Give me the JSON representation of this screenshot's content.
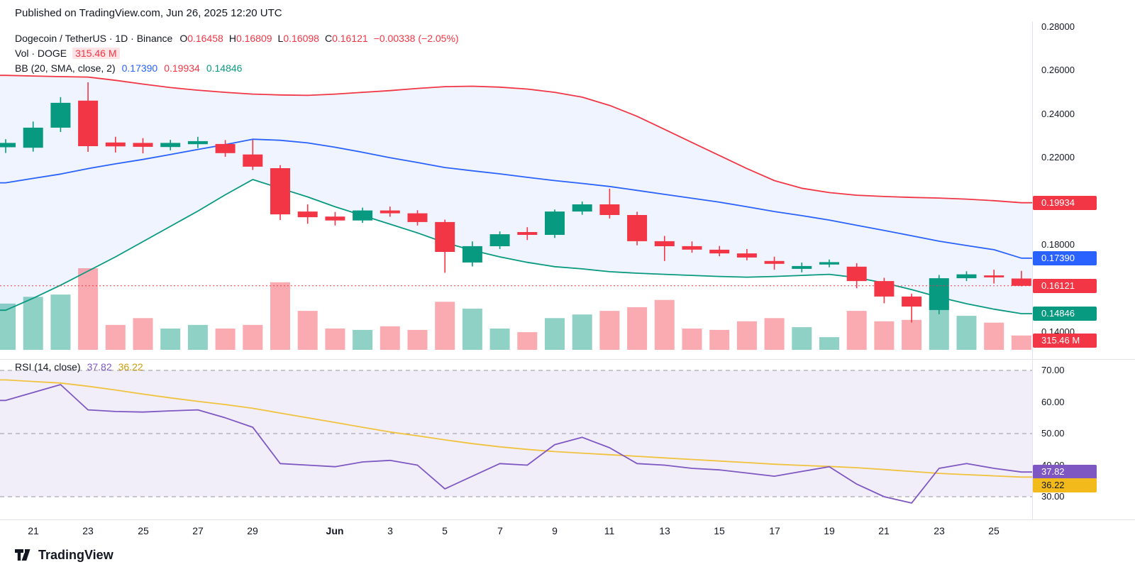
{
  "header": {
    "published": "Published on TradingView.com, Jun 26, 2025 12:20 UTC"
  },
  "legend": {
    "title": "Dogecoin / TetherUS · 1D · Binance",
    "ohlc": [
      {
        "k": "O",
        "v": "0.16458"
      },
      {
        "k": "H",
        "v": "0.16809"
      },
      {
        "k": "L",
        "v": "0.16098"
      },
      {
        "k": "C",
        "v": "0.16121"
      }
    ],
    "change": "−0.00338 (−2.05%)",
    "vol_label": "Vol · DOGE",
    "vol_value": "315.46 M",
    "bb_label": "BB (20, SMA, close, 2)",
    "bb_basis": "0.17390",
    "bb_upper": "0.19934",
    "bb_lower": "0.14846"
  },
  "rsi_legend": {
    "label": "RSI (14, close)",
    "rsi_value": "37.82",
    "ma_value": "36.22"
  },
  "price_scale": {
    "ticks": [
      {
        "label": "0.28000",
        "price": 0.28
      },
      {
        "label": "0.26000",
        "price": 0.26
      },
      {
        "label": "0.24000",
        "price": 0.24
      },
      {
        "label": "0.22000",
        "price": 0.22
      },
      {
        "label": "0.18000",
        "price": 0.18
      },
      {
        "label": "0.14000",
        "price": 0.14
      }
    ],
    "badges": [
      {
        "label": "0.19934",
        "price": 0.19934,
        "bg": "#f23645",
        "fg": "#ffffff"
      },
      {
        "label": "0.17390",
        "price": 0.1739,
        "bg": "#2962ff",
        "fg": "#ffffff"
      },
      {
        "label": "0.16121",
        "price": 0.16121,
        "bg": "#f23645",
        "fg": "#ffffff"
      },
      {
        "label": "0.14846",
        "price": 0.14846,
        "bg": "#089981",
        "fg": "#ffffff"
      }
    ],
    "vol_badge": {
      "label": "315.46 M",
      "bg": "#f23645",
      "fg": "#ffffff"
    }
  },
  "rsi_scale": {
    "ticks": [
      {
        "label": "70.00",
        "value": 70
      },
      {
        "label": "60.00",
        "value": 60
      },
      {
        "label": "50.00",
        "value": 50
      },
      {
        "label": "40.00",
        "value": 40
      },
      {
        "label": "30.00",
        "value": 30
      }
    ],
    "badges": [
      {
        "label": "37.82",
        "value": 37.82,
        "bg": "#7e57c2",
        "fg": "#ffffff"
      },
      {
        "label": "36.22",
        "value": 36.22,
        "bg": "#f3ba1c",
        "fg": "#131722"
      }
    ]
  },
  "time_axis": {
    "ticks": [
      {
        "index": 1,
        "label": "21",
        "bold": false
      },
      {
        "index": 3,
        "label": "23",
        "bold": false
      },
      {
        "index": 5,
        "label": "25",
        "bold": false
      },
      {
        "index": 7,
        "label": "27",
        "bold": false
      },
      {
        "index": 9,
        "label": "29",
        "bold": false
      },
      {
        "index": 12,
        "label": "Jun",
        "bold": true
      },
      {
        "index": 14,
        "label": "3",
        "bold": false
      },
      {
        "index": 16,
        "label": "5",
        "bold": false
      },
      {
        "index": 18,
        "label": "7",
        "bold": false
      },
      {
        "index": 20,
        "label": "9",
        "bold": false
      },
      {
        "index": 22,
        "label": "11",
        "bold": false
      },
      {
        "index": 24,
        "label": "13",
        "bold": false
      },
      {
        "index": 26,
        "label": "15",
        "bold": false
      },
      {
        "index": 28,
        "label": "17",
        "bold": false
      },
      {
        "index": 30,
        "label": "19",
        "bold": false
      },
      {
        "index": 32,
        "label": "21",
        "bold": false
      },
      {
        "index": 34,
        "label": "23",
        "bold": false
      },
      {
        "index": 36,
        "label": "25",
        "bold": false
      }
    ]
  },
  "footer": {
    "brand": "TradingView"
  },
  "colors": {
    "up": "#089981",
    "down": "#f23645",
    "vol_up": "rgba(8,153,129,0.45)",
    "vol_down": "rgba(242,54,69,0.42)",
    "bb_upper": "#f23645",
    "bb_basis": "#2962ff",
    "bb_lower": "#089981",
    "bb_fill": "rgba(41,98,255,0.07)",
    "rsi_line": "#7e57c2",
    "rsi_ma": "#f0c23e",
    "rsi_fill": "rgba(126,87,194,0.10)",
    "level": "#9598a1"
  },
  "chart_data": {
    "type": "candlestick",
    "title": "Dogecoin / TetherUS · 1D · Binance",
    "symbol": "Dogecoin / TetherUS",
    "interval": "1D",
    "exchange": "Binance",
    "last": {
      "o": 0.16458,
      "h": 0.16809,
      "l": 0.16098,
      "c": 0.16121,
      "change": -0.00338,
      "change_pct": -2.05
    },
    "current_price": 0.16121,
    "volume_unit": "M",
    "last_volume_m": 315.46,
    "price_axis_range": [
      0.13,
      0.285
    ],
    "indicators": [
      {
        "name": "BB",
        "params": "20, SMA, close, 2",
        "basis": 0.1739,
        "upper": 0.19934,
        "lower": 0.14846
      },
      {
        "name": "RSI",
        "params": "14, close",
        "value": 37.82,
        "ma": 36.22,
        "levels": [
          70,
          50,
          30
        ]
      }
    ],
    "candles": [
      {
        "d": "May 20",
        "o": 0.2248,
        "h": 0.2285,
        "l": 0.2222,
        "c": 0.2268,
        "v": 1020
      },
      {
        "d": "May 21",
        "o": 0.2246,
        "h": 0.2366,
        "l": 0.2228,
        "c": 0.2338,
        "v": 1170
      },
      {
        "d": "May 22",
        "o": 0.2338,
        "h": 0.2478,
        "l": 0.2318,
        "c": 0.2452,
        "v": 1220
      },
      {
        "d": "May 23",
        "o": 0.2462,
        "h": 0.2546,
        "l": 0.2227,
        "c": 0.2253,
        "v": 1800
      },
      {
        "d": "May 24",
        "o": 0.227,
        "h": 0.2296,
        "l": 0.2224,
        "c": 0.2252,
        "v": 550
      },
      {
        "d": "May 25",
        "o": 0.2268,
        "h": 0.229,
        "l": 0.222,
        "c": 0.225,
        "v": 700
      },
      {
        "d": "May 26",
        "o": 0.2249,
        "h": 0.2282,
        "l": 0.2234,
        "c": 0.2268,
        "v": 470
      },
      {
        "d": "May 27",
        "o": 0.2262,
        "h": 0.2296,
        "l": 0.2244,
        "c": 0.2276,
        "v": 550
      },
      {
        "d": "May 28",
        "o": 0.2263,
        "h": 0.2281,
        "l": 0.2204,
        "c": 0.2221,
        "v": 470
      },
      {
        "d": "May 29",
        "o": 0.2215,
        "h": 0.2282,
        "l": 0.2144,
        "c": 0.2159,
        "v": 550
      },
      {
        "d": "May 30",
        "o": 0.2152,
        "h": 0.2166,
        "l": 0.1914,
        "c": 0.194,
        "v": 1490
      },
      {
        "d": "May 31",
        "o": 0.1953,
        "h": 0.1986,
        "l": 0.1897,
        "c": 0.1927,
        "v": 860
      },
      {
        "d": "Jun 1",
        "o": 0.193,
        "h": 0.1951,
        "l": 0.1889,
        "c": 0.1912,
        "v": 470
      },
      {
        "d": "Jun 2",
        "o": 0.1912,
        "h": 0.1971,
        "l": 0.1901,
        "c": 0.1958,
        "v": 440
      },
      {
        "d": "Jun 3",
        "o": 0.1958,
        "h": 0.1976,
        "l": 0.1929,
        "c": 0.1945,
        "v": 520
      },
      {
        "d": "Jun 4",
        "o": 0.1945,
        "h": 0.1959,
        "l": 0.1889,
        "c": 0.1905,
        "v": 440
      },
      {
        "d": "Jun 5",
        "o": 0.1905,
        "h": 0.1916,
        "l": 0.1672,
        "c": 0.1768,
        "v": 1060
      },
      {
        "d": "Jun 6",
        "o": 0.1719,
        "h": 0.1816,
        "l": 0.1701,
        "c": 0.1794,
        "v": 910
      },
      {
        "d": "Jun 7",
        "o": 0.1794,
        "h": 0.1862,
        "l": 0.1781,
        "c": 0.1849,
        "v": 470
      },
      {
        "d": "Jun 8",
        "o": 0.1859,
        "h": 0.1881,
        "l": 0.1822,
        "c": 0.1846,
        "v": 390
      },
      {
        "d": "Jun 9",
        "o": 0.1846,
        "h": 0.1962,
        "l": 0.1832,
        "c": 0.1953,
        "v": 700
      },
      {
        "d": "Jun 10",
        "o": 0.1953,
        "h": 0.1999,
        "l": 0.1938,
        "c": 0.1986,
        "v": 780
      },
      {
        "d": "Jun 11",
        "o": 0.1986,
        "h": 0.2058,
        "l": 0.1921,
        "c": 0.1937,
        "v": 860
      },
      {
        "d": "Jun 12",
        "o": 0.1937,
        "h": 0.1952,
        "l": 0.1798,
        "c": 0.1817,
        "v": 940
      },
      {
        "d": "Jun 13",
        "o": 0.1817,
        "h": 0.1841,
        "l": 0.1726,
        "c": 0.1794,
        "v": 1100
      },
      {
        "d": "Jun 14",
        "o": 0.1794,
        "h": 0.1816,
        "l": 0.1764,
        "c": 0.1778,
        "v": 470
      },
      {
        "d": "Jun 15",
        "o": 0.1778,
        "h": 0.1795,
        "l": 0.1748,
        "c": 0.1761,
        "v": 440
      },
      {
        "d": "Jun 16",
        "o": 0.1761,
        "h": 0.1781,
        "l": 0.1729,
        "c": 0.1742,
        "v": 630
      },
      {
        "d": "Jun 17",
        "o": 0.1726,
        "h": 0.1746,
        "l": 0.1686,
        "c": 0.1713,
        "v": 700
      },
      {
        "d": "Jun 18",
        "o": 0.169,
        "h": 0.1719,
        "l": 0.1674,
        "c": 0.1703,
        "v": 500
      },
      {
        "d": "Jun 19",
        "o": 0.171,
        "h": 0.1733,
        "l": 0.1697,
        "c": 0.1721,
        "v": 280
      },
      {
        "d": "Jun 20",
        "o": 0.17,
        "h": 0.1716,
        "l": 0.1601,
        "c": 0.1634,
        "v": 860
      },
      {
        "d": "Jun 21",
        "o": 0.1634,
        "h": 0.1649,
        "l": 0.1532,
        "c": 0.1563,
        "v": 630
      },
      {
        "d": "Jun 22",
        "o": 0.1563,
        "h": 0.1576,
        "l": 0.1444,
        "c": 0.1517,
        "v": 660
      },
      {
        "d": "Jun 23",
        "o": 0.1501,
        "h": 0.1662,
        "l": 0.1482,
        "c": 0.1647,
        "v": 1170
      },
      {
        "d": "Jun 24",
        "o": 0.1647,
        "h": 0.1679,
        "l": 0.1634,
        "c": 0.1665,
        "v": 750
      },
      {
        "d": "Jun 25",
        "o": 0.166,
        "h": 0.1686,
        "l": 0.1623,
        "c": 0.1651,
        "v": 600
      },
      {
        "d": "Jun 26",
        "o": 0.16458,
        "h": 0.16809,
        "l": 0.16098,
        "c": 0.16121,
        "v": 315.46
      }
    ],
    "bollinger": {
      "upper": [
        0.2578,
        0.2575,
        0.2572,
        0.257,
        0.2555,
        0.2538,
        0.2522,
        0.251,
        0.25,
        0.2492,
        0.2488,
        0.2486,
        0.2492,
        0.25,
        0.2508,
        0.2518,
        0.2526,
        0.2528,
        0.2524,
        0.2515,
        0.25,
        0.2478,
        0.244,
        0.239,
        0.233,
        0.227,
        0.221,
        0.215,
        0.2095,
        0.206,
        0.204,
        0.2028,
        0.2022,
        0.2018,
        0.2015,
        0.201,
        0.2003,
        0.19934
      ],
      "basis": [
        0.2085,
        0.2105,
        0.2125,
        0.215,
        0.2172,
        0.2192,
        0.2215,
        0.2238,
        0.226,
        0.2285,
        0.228,
        0.2268,
        0.2248,
        0.2225,
        0.22,
        0.2178,
        0.2155,
        0.214,
        0.2126,
        0.211,
        0.2095,
        0.2082,
        0.2068,
        0.205,
        0.2032,
        0.2014,
        0.1996,
        0.1975,
        0.1953,
        0.1934,
        0.1914,
        0.189,
        0.1866,
        0.1842,
        0.1817,
        0.1797,
        0.1778,
        0.1739
      ],
      "lower": [
        0.15,
        0.1555,
        0.1615,
        0.168,
        0.1745,
        0.1815,
        0.1885,
        0.1955,
        0.203,
        0.21,
        0.206,
        0.202,
        0.1975,
        0.1935,
        0.1895,
        0.1855,
        0.181,
        0.1775,
        0.1745,
        0.172,
        0.17,
        0.169,
        0.1677,
        0.167,
        0.1665,
        0.166,
        0.1655,
        0.1652,
        0.1655,
        0.166,
        0.1665,
        0.165,
        0.1625,
        0.1595,
        0.156,
        0.153,
        0.1505,
        0.14846
      ]
    },
    "rsi": {
      "levels": [
        70,
        50,
        30
      ],
      "rsi": [
        60.5,
        63.0,
        65.5,
        57.5,
        57.0,
        56.8,
        57.2,
        57.5,
        55.0,
        52.0,
        40.5,
        40.0,
        39.5,
        41.0,
        41.5,
        40.0,
        32.5,
        36.5,
        40.5,
        40.0,
        46.5,
        48.8,
        45.5,
        40.5,
        40.0,
        39.0,
        38.5,
        37.5,
        36.5,
        38.0,
        39.5,
        34.0,
        30.0,
        28.0,
        39.0,
        40.5,
        39.0,
        37.82
      ],
      "ma": [
        67.0,
        66.5,
        66.0,
        65.0,
        63.8,
        62.5,
        61.3,
        60.2,
        59.2,
        58.0,
        56.5,
        55.0,
        53.5,
        52.0,
        50.5,
        49.3,
        48.0,
        46.8,
        45.8,
        45.0,
        44.3,
        43.8,
        43.3,
        42.8,
        42.3,
        41.8,
        41.3,
        40.8,
        40.3,
        39.9,
        39.6,
        39.2,
        38.6,
        38.0,
        37.4,
        37.0,
        36.6,
        36.22
      ]
    }
  }
}
